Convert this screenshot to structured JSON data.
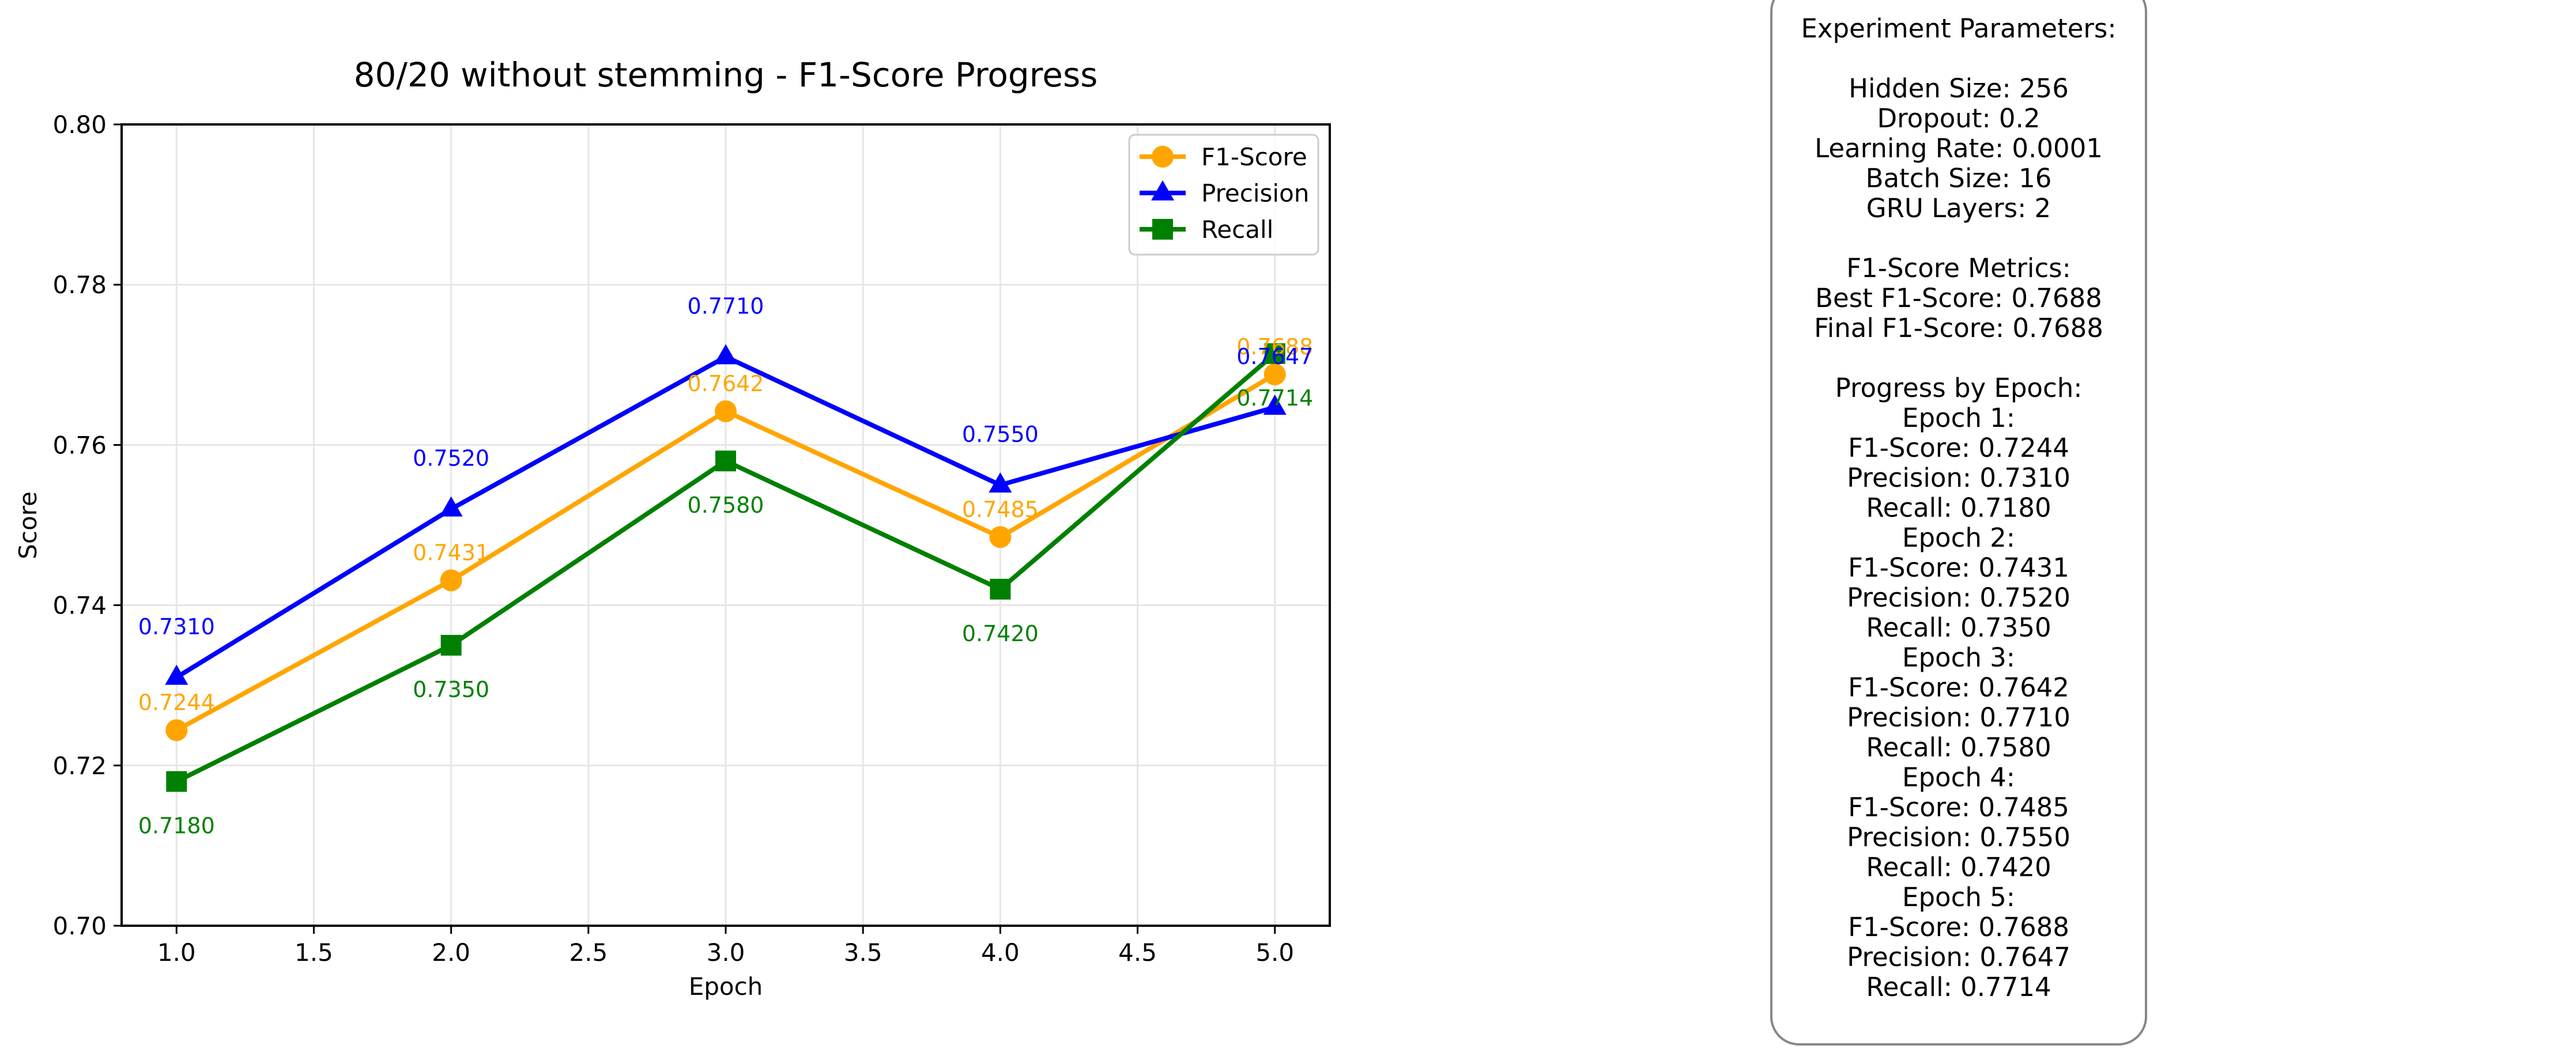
{
  "chart_data": {
    "type": "line",
    "title": "80/20 without stemming - F1-Score Progress",
    "xlabel": "Epoch",
    "ylabel": "Score",
    "x": [
      1,
      2,
      3,
      4,
      5
    ],
    "xlim": [
      0.8,
      5.2
    ],
    "ylim": [
      0.7,
      0.8
    ],
    "xticks": [
      "1.0",
      "1.5",
      "2.0",
      "2.5",
      "3.0",
      "3.5",
      "4.0",
      "4.5",
      "5.0"
    ],
    "yticks": [
      "0.70",
      "0.72",
      "0.74",
      "0.76",
      "0.78",
      "0.80"
    ],
    "grid": true,
    "legend_position": "top-right",
    "series": [
      {
        "name": "F1-Score",
        "color": "#FFA500",
        "marker": "circle",
        "values": [
          0.7244,
          0.7431,
          0.7642,
          0.7485,
          0.7688
        ],
        "labels": [
          "0.7244",
          "0.7431",
          "0.7642",
          "0.7485",
          "0.7688"
        ]
      },
      {
        "name": "Precision",
        "color": "#0000FF",
        "marker": "triangle",
        "values": [
          0.731,
          0.752,
          0.771,
          0.755,
          0.7647
        ],
        "labels": [
          "0.7310",
          "0.7520",
          "0.7710",
          "0.7550",
          "0.7647"
        ]
      },
      {
        "name": "Recall",
        "color": "#008000",
        "marker": "square",
        "values": [
          0.718,
          0.735,
          0.758,
          0.742,
          0.7714
        ],
        "labels": [
          "0.7180",
          "0.7350",
          "0.7580",
          "0.7420",
          "0.7714"
        ]
      }
    ]
  },
  "params_panel": {
    "lines": [
      "Experiment Parameters:",
      "",
      "Hidden Size: 256",
      "Dropout: 0.2",
      "Learning Rate: 0.0001",
      "Batch Size: 16",
      "GRU Layers: 2",
      "",
      "F1-Score Metrics:",
      "Best F1-Score: 0.7688",
      "Final F1-Score: 0.7688",
      "",
      "Progress by Epoch:",
      "Epoch 1:",
      "F1-Score: 0.7244",
      "Precision: 0.7310",
      "Recall: 0.7180",
      "Epoch 2:",
      "F1-Score: 0.7431",
      "Precision: 0.7520",
      "Recall: 0.7350",
      "Epoch 3:",
      "F1-Score: 0.7642",
      "Precision: 0.7710",
      "Recall: 0.7580",
      "Epoch 4:",
      "F1-Score: 0.7485",
      "Precision: 0.7550",
      "Recall: 0.7420",
      "Epoch 5:",
      "F1-Score: 0.7688",
      "Precision: 0.7647",
      "Recall: 0.7714"
    ]
  }
}
